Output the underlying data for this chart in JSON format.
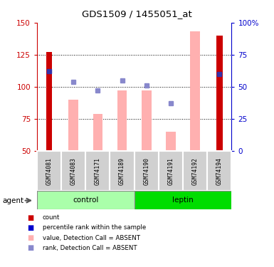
{
  "title": "GDS1509 / 1455051_at",
  "samples": [
    "GSM74081",
    "GSM74083",
    "GSM74171",
    "GSM74189",
    "GSM74190",
    "GSM74191",
    "GSM74192",
    "GSM74194"
  ],
  "groups": [
    "control",
    "control",
    "control",
    "control",
    "leptin",
    "leptin",
    "leptin",
    "leptin"
  ],
  "control_color_light": "#CCFFCC",
  "control_color_dark": "#66CC66",
  "leptin_color_light": "#66FF66",
  "leptin_color_dark": "#00BB00",
  "red_bar_values": [
    127,
    null,
    null,
    null,
    null,
    null,
    null,
    140
  ],
  "red_bar_color": "#CC0000",
  "pink_bar_values": [
    null,
    90,
    79,
    97,
    97,
    65,
    143,
    null
  ],
  "pink_bar_color": "#FFB0B0",
  "blue_sq_values": [
    112,
    104,
    97,
    105,
    101,
    87,
    null,
    110
  ],
  "blue_sq_color": "#8888CC",
  "dark_blue_sq_samples": [
    0,
    7
  ],
  "dark_blue_sq_color": "#3333AA",
  "ylim_left": [
    50,
    150
  ],
  "ylim_right": [
    0,
    100
  ],
  "yticks_left": [
    50,
    75,
    100,
    125,
    150
  ],
  "yticks_right": [
    0,
    25,
    50,
    75,
    100
  ],
  "ytick_labels_left": [
    "50",
    "75",
    "100",
    "125",
    "150"
  ],
  "ytick_labels_right": [
    "0",
    "25",
    "50",
    "75",
    "100%"
  ],
  "left_axis_color": "#CC0000",
  "right_axis_color": "#0000CC",
  "grid_lines": [
    75,
    100,
    125
  ],
  "base": 50,
  "red_bar_width": 0.25,
  "pink_bar_width": 0.4,
  "legend_labels": [
    "count",
    "percentile rank within the sample",
    "value, Detection Call = ABSENT",
    "rank, Detection Call = ABSENT"
  ],
  "legend_colors": [
    "#CC0000",
    "#0000CC",
    "#FFB0B0",
    "#8888CC"
  ],
  "agent_label": "agent"
}
